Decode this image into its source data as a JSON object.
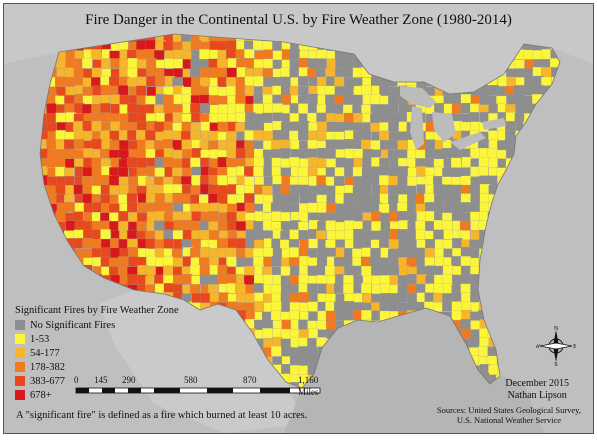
{
  "map": {
    "title": "Fire Danger in the Continental U.S. by Fire Weather Zone (1980-2014)"
  },
  "legend": {
    "title": "Significant Fires by Fire Weather Zone",
    "items": [
      {
        "label": "No Significant Fires",
        "color": "#8e8e8e"
      },
      {
        "label": "1-53",
        "color": "#fbf63b"
      },
      {
        "label": "54-177",
        "color": "#f7b52b"
      },
      {
        "label": "178-382",
        "color": "#f07a20"
      },
      {
        "label": "383-677",
        "color": "#e8481e"
      },
      {
        "label": "678+",
        "color": "#d7191c"
      }
    ]
  },
  "scale": {
    "ticks": [
      "0",
      "145",
      "290",
      "580",
      "870",
      "1,160"
    ],
    "unit": "Miles"
  },
  "compass": {
    "n": "N",
    "s": "S",
    "e": "E",
    "w": "W"
  },
  "footnote": "A \"significant fire\" is defined as a fire which burned at least 10 acres.",
  "credit": {
    "date": "December 2015",
    "author": "Nathan Lipson"
  },
  "sources": {
    "line1": "Sources: United States Geological Survey,",
    "line2": "U.S. National Weather Service"
  }
}
